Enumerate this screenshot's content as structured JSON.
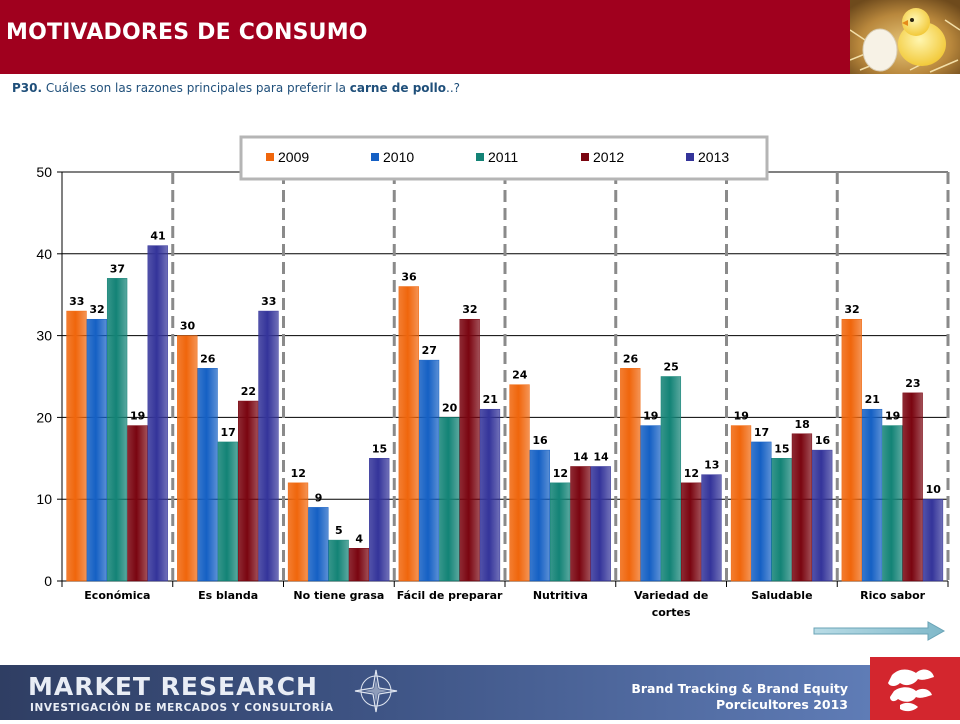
{
  "header": {
    "title": "MOTIVADORES DE CONSUMO",
    "photo_icon": "chick-and-egg-photo"
  },
  "question": {
    "code": "P30.",
    "text_before": " Cuáles son las razones principales para preferir la ",
    "text_strong": "carne de pollo",
    "text_after": "..?"
  },
  "chart_data": {
    "type": "bar",
    "categories": [
      [
        "Económica"
      ],
      [
        "Es blanda"
      ],
      [
        "No tiene grasa"
      ],
      [
        "Fácil de preparar"
      ],
      [
        "Nutritiva"
      ],
      [
        "Variedad de",
        "cortes"
      ],
      [
        "Saludable"
      ],
      [
        "Rico sabor"
      ]
    ],
    "series": [
      {
        "name": "2009",
        "color": "#f0660c",
        "values": [
          33,
          30,
          12,
          36,
          24,
          26,
          19,
          32
        ]
      },
      {
        "name": "2010",
        "color": "#1560c4",
        "values": [
          32,
          26,
          9,
          27,
          16,
          19,
          17,
          21
        ]
      },
      {
        "name": "2011",
        "color": "#138376",
        "values": [
          37,
          17,
          5,
          20,
          12,
          25,
          15,
          19
        ]
      },
      {
        "name": "2012",
        "color": "#7a0510",
        "values": [
          19,
          22,
          4,
          32,
          14,
          12,
          18,
          23
        ]
      },
      {
        "name": "2013",
        "color": "#34349a",
        "values": [
          41,
          33,
          15,
          21,
          14,
          13,
          16,
          10
        ]
      }
    ],
    "ylim": [
      0,
      50
    ],
    "yticks": [
      0,
      10,
      20,
      30,
      40,
      50
    ],
    "grid": true,
    "legend_position": "top-center",
    "data_labels": true
  },
  "footer": {
    "brand_name": "MARKET RESEARCH",
    "brand_sub": "INVESTIGACIÓN DE MERCADOS Y CONSULTORÍA",
    "study_line1": "Brand Tracking & Brand Equity",
    "study_line2": "Porcicultores 2013",
    "compass_icon": "compass-rose-icon",
    "client_logo_icon": "porcicultores-logo-icon",
    "next_icon": "next-arrow-icon"
  }
}
